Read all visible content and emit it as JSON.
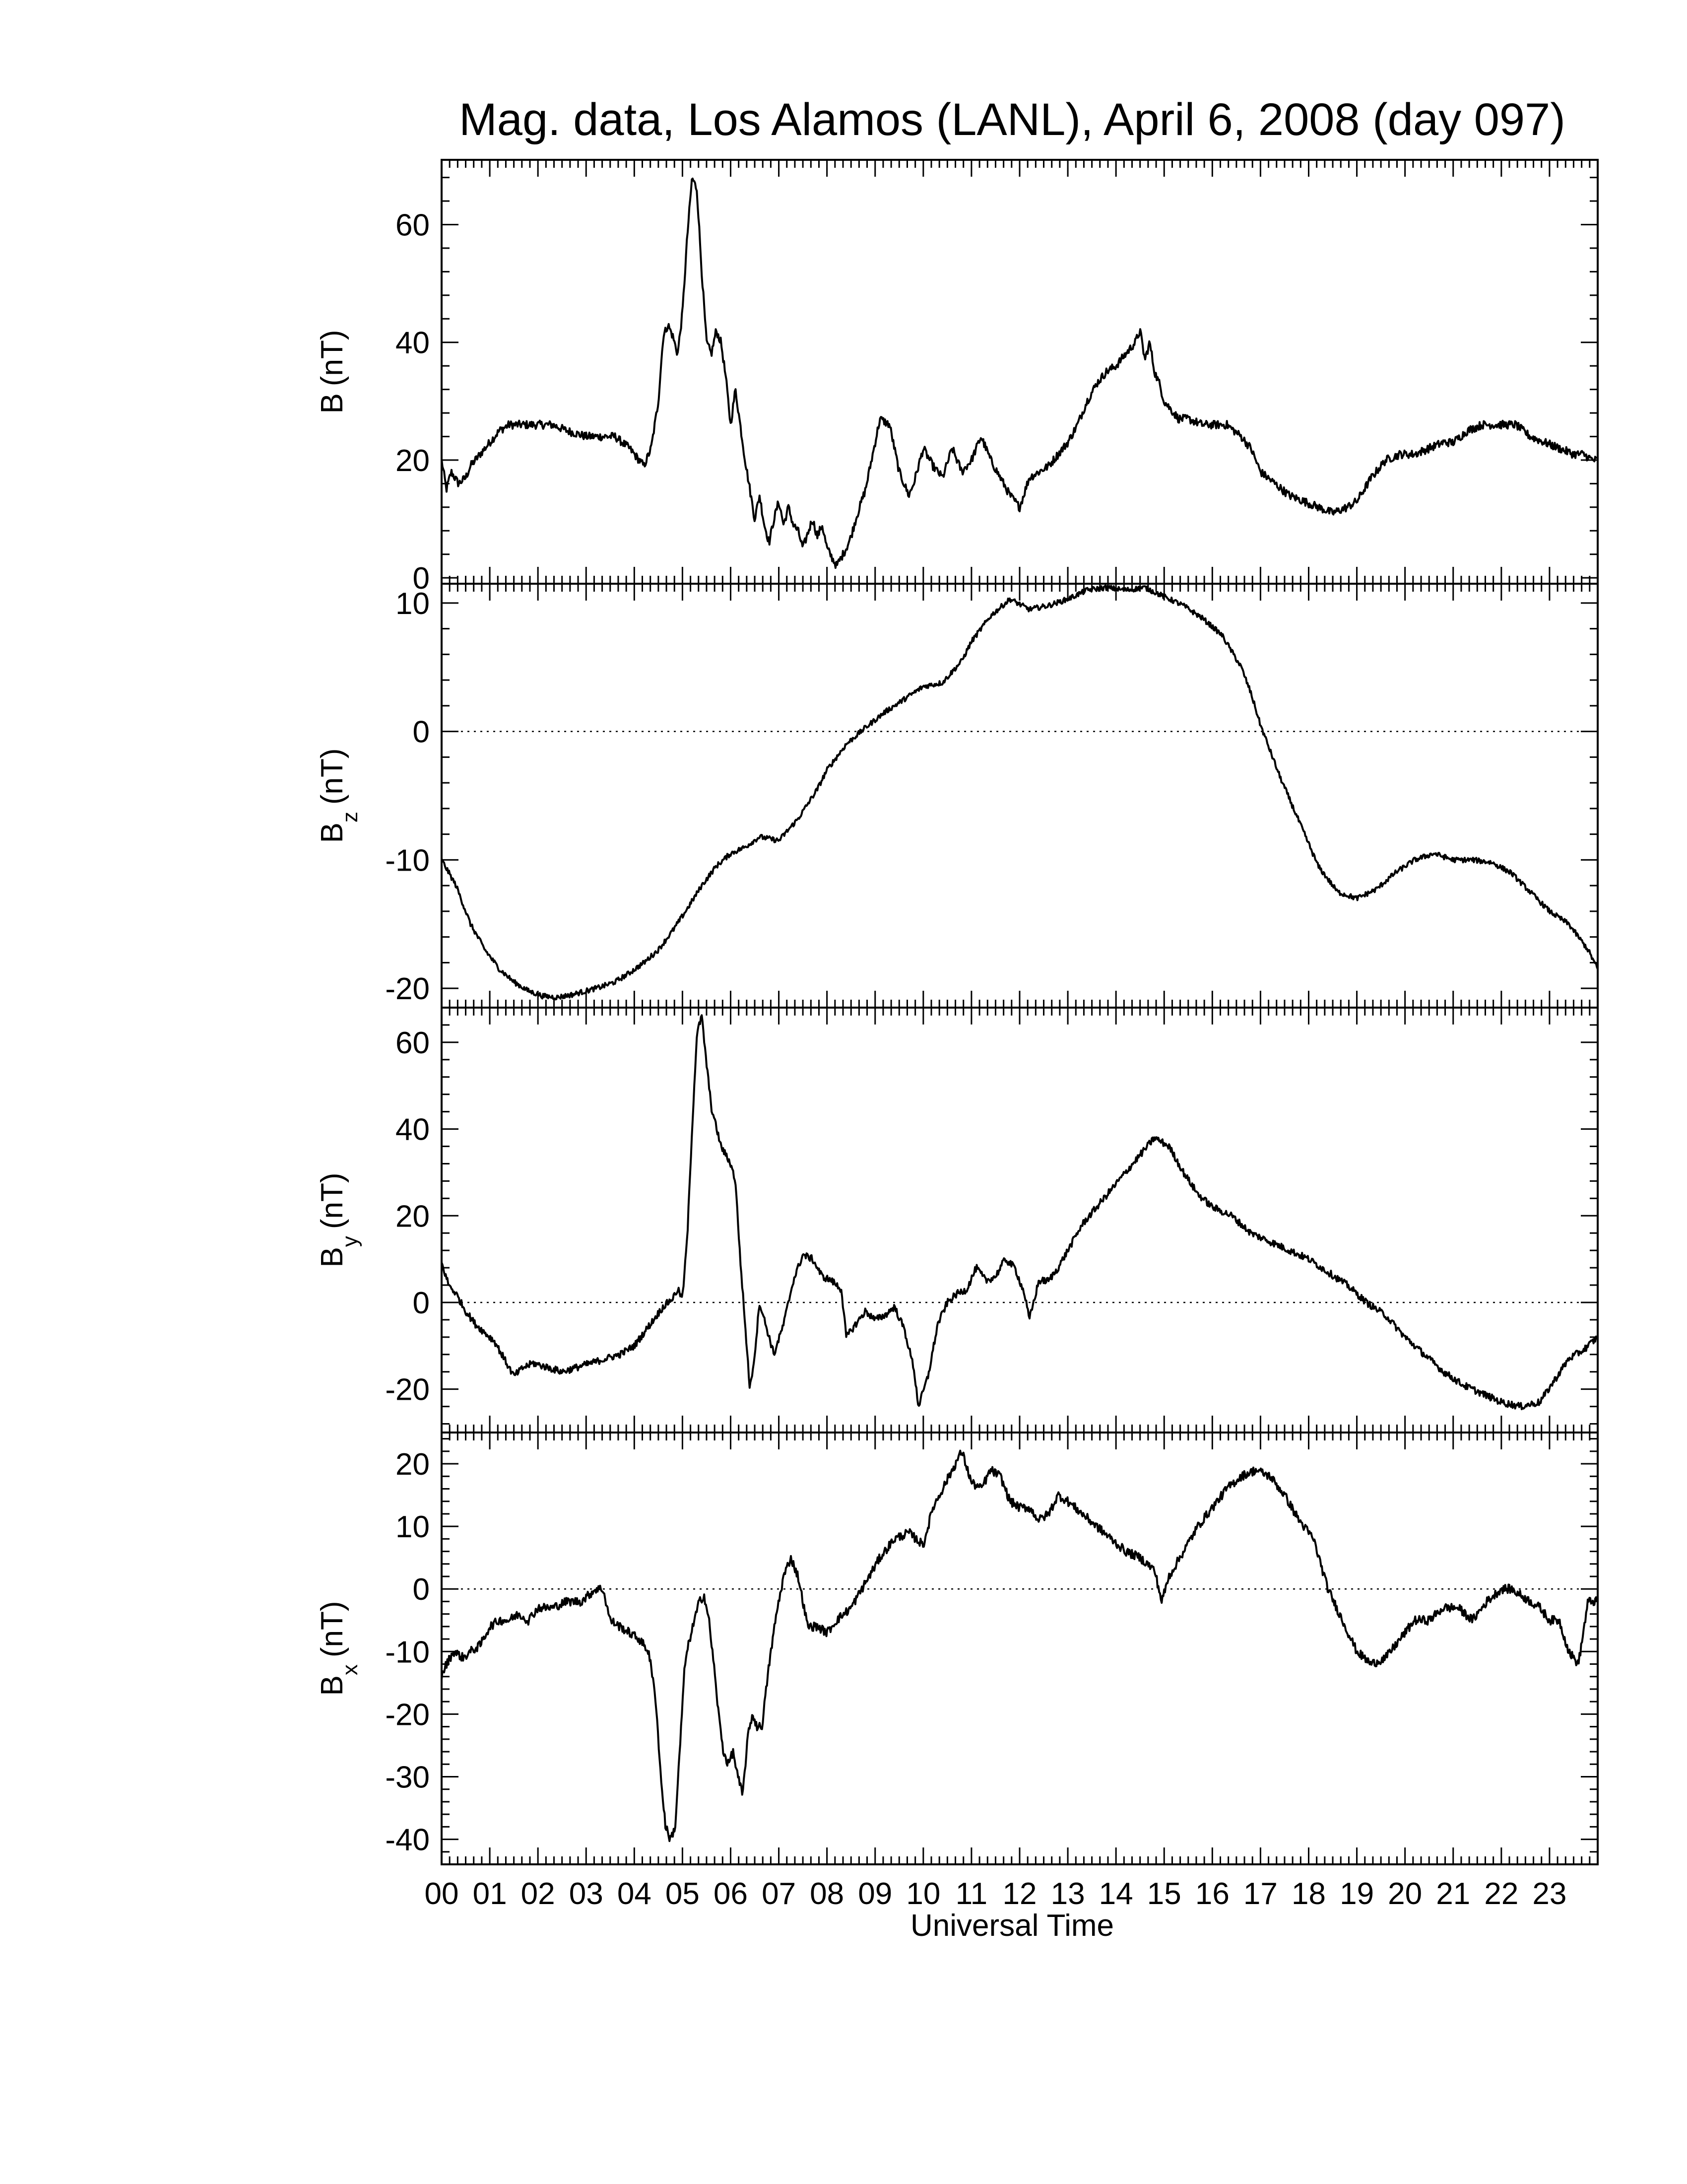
{
  "figure": {
    "title": "Mag. data, Los Alamos (LANL), April 6, 2008 (day 097)",
    "xlabel": "Universal Time"
  },
  "chart_data": {
    "type": "line",
    "x_unit": "hours UT",
    "x_ticks": [
      "00",
      "01",
      "02",
      "03",
      "04",
      "05",
      "06",
      "07",
      "08",
      "09",
      "10",
      "11",
      "12",
      "13",
      "14",
      "15",
      "16",
      "17",
      "18",
      "19",
      "20",
      "21",
      "22",
      "23"
    ],
    "xlim": [
      0,
      24
    ],
    "panels": [
      {
        "id": "B",
        "ylabel_main": "B",
        "ylabel_sub": "",
        "ylabel_unit": "(nT)",
        "ylim": [
          -1,
          71
        ],
        "yticks": [
          0,
          20,
          40,
          60
        ],
        "zero_line": false,
        "noise": 0.7,
        "series": {
          "name": "B",
          "x": [
            0,
            0.1,
            0.2,
            0.35,
            0.5,
            0.6,
            0.8,
            1.0,
            1.2,
            1.4,
            1.7,
            2.0,
            2.3,
            2.6,
            3.0,
            3.3,
            3.6,
            3.9,
            4.1,
            4.2,
            4.35,
            4.5,
            4.6,
            4.7,
            4.8,
            4.9,
            5.0,
            5.1,
            5.2,
            5.3,
            5.4,
            5.5,
            5.6,
            5.7,
            5.8,
            5.9,
            6.0,
            6.1,
            6.2,
            6.3,
            6.4,
            6.5,
            6.6,
            6.7,
            6.8,
            6.9,
            7.0,
            7.1,
            7.2,
            7.3,
            7.4,
            7.5,
            7.7,
            7.8,
            7.9,
            8.0,
            8.2,
            8.4,
            8.5,
            8.6,
            8.8,
            9.0,
            9.1,
            9.3,
            9.5,
            9.7,
            9.8,
            9.9,
            10.0,
            10.2,
            10.4,
            10.6,
            10.7,
            10.8,
            11.0,
            11.2,
            11.4,
            11.6,
            11.8,
            12.0,
            12.2,
            12.4,
            12.6,
            12.8,
            13.0,
            13.2,
            13.4,
            13.6,
            13.8,
            14.0,
            14.2,
            14.4,
            14.5,
            14.6,
            14.7,
            14.8,
            14.9,
            15.0,
            15.1,
            15.2,
            15.3,
            15.5,
            15.8,
            16.0,
            16.3,
            16.6,
            16.8,
            17.0,
            17.3,
            17.6,
            17.9,
            18.2,
            18.5,
            18.8,
            19.0,
            19.3,
            19.6,
            19.9,
            20.2,
            20.5,
            20.8,
            21.0,
            21.3,
            21.6,
            22.0,
            22.3,
            22.6,
            22.9,
            23.2,
            23.5,
            23.7,
            23.9,
            24.0
          ],
          "y": [
            20,
            15,
            18,
            16,
            17,
            19,
            21,
            23,
            25,
            26,
            26,
            26,
            26,
            25,
            24,
            24,
            24,
            22,
            20,
            19,
            22,
            30,
            41,
            43,
            41,
            38,
            45,
            58,
            68,
            66,
            52,
            40,
            38,
            42,
            40,
            34,
            26,
            32,
            26,
            20,
            15,
            10,
            14,
            9,
            6,
            10,
            13,
            9,
            12,
            9,
            8,
            5,
            10,
            7,
            9,
            5,
            2,
            5,
            7,
            10,
            15,
            23,
            27,
            26,
            18,
            14,
            16,
            19,
            22,
            19,
            17,
            22,
            20,
            18,
            20,
            24,
            20,
            17,
            14,
            12,
            17,
            18,
            19,
            21,
            23,
            26,
            30,
            33,
            35,
            36,
            38,
            40,
            42,
            37,
            40,
            35,
            33,
            30,
            29,
            28,
            27,
            27,
            26,
            26,
            26,
            24,
            22,
            18,
            16,
            14,
            13,
            12,
            11,
            12,
            13,
            17,
            20,
            21,
            21,
            22,
            23,
            23,
            25,
            26,
            26,
            26,
            24,
            23,
            22,
            21,
            21,
            20,
            20
          ]
        }
      },
      {
        "id": "Bz",
        "ylabel_main": "B",
        "ylabel_sub": "z",
        "ylabel_unit": "(nT)",
        "ylim": [
          -21.5,
          11.5
        ],
        "yticks": [
          -20,
          -10,
          0,
          10
        ],
        "zero_line": true,
        "noise": 0.2,
        "series": {
          "name": "Bz",
          "x": [
            0,
            0.3,
            0.6,
            0.9,
            1.2,
            1.5,
            1.8,
            2.1,
            2.4,
            2.7,
            3.0,
            3.3,
            3.6,
            3.9,
            4.2,
            4.5,
            4.8,
            5.1,
            5.4,
            5.7,
            6.0,
            6.3,
            6.6,
            7.0,
            7.4,
            7.8,
            8.0,
            8.4,
            8.8,
            9.2,
            9.6,
            10.0,
            10.4,
            10.8,
            11.0,
            11.4,
            11.8,
            12.2,
            12.6,
            13.0,
            13.4,
            13.8,
            14.2,
            14.6,
            15.0,
            15.4,
            15.8,
            16.2,
            16.6,
            16.8,
            17.0,
            17.4,
            17.8,
            18.2,
            18.6,
            19.0,
            19.4,
            19.8,
            20.2,
            20.6,
            21.0,
            21.4,
            21.8,
            22.2,
            22.6,
            23.0,
            23.4,
            23.8,
            24.0
          ],
          "y": [
            -10,
            -12,
            -15,
            -17,
            -18.5,
            -19.5,
            -20.2,
            -20.6,
            -20.7,
            -20.5,
            -20.2,
            -19.9,
            -19.5,
            -18.8,
            -18,
            -17,
            -15.5,
            -13.8,
            -12,
            -10.5,
            -9.5,
            -9.0,
            -8.2,
            -8.5,
            -6.8,
            -4.5,
            -3.0,
            -1.0,
            0.3,
            1.5,
            2.5,
            3.5,
            3.8,
            5.5,
            7.0,
            9.0,
            10.3,
            9.5,
            9.8,
            10.3,
            11.0,
            11.2,
            11.0,
            11.2,
            10.5,
            9.8,
            8.8,
            7.5,
            5.0,
            3.0,
            0.5,
            -3.5,
            -7.0,
            -10.5,
            -12.5,
            -13.0,
            -12.3,
            -11.0,
            -10.0,
            -9.5,
            -10.0,
            -10.0,
            -10.2,
            -11.0,
            -12.5,
            -14.0,
            -15.0,
            -17.0,
            -18.5
          ]
        }
      },
      {
        "id": "By",
        "ylabel_main": "B",
        "ylabel_sub": "y",
        "ylabel_unit": "(nT)",
        "ylim": [
          -30,
          68
        ],
        "yticks": [
          -20,
          0,
          20,
          40,
          60
        ],
        "zero_line": true,
        "noise": 0.8,
        "series": {
          "name": "By",
          "x": [
            0,
            0.15,
            0.3,
            0.5,
            0.7,
            0.9,
            1.1,
            1.3,
            1.5,
            1.7,
            1.9,
            2.2,
            2.5,
            2.8,
            3.1,
            3.4,
            3.7,
            4.0,
            4.2,
            4.4,
            4.6,
            4.8,
            4.9,
            5.0,
            5.1,
            5.2,
            5.3,
            5.4,
            5.5,
            5.6,
            5.8,
            6.0,
            6.1,
            6.2,
            6.3,
            6.4,
            6.5,
            6.6,
            6.7,
            6.9,
            7.1,
            7.3,
            7.5,
            7.7,
            7.9,
            8.1,
            8.3,
            8.4,
            8.6,
            8.8,
            9.0,
            9.2,
            9.4,
            9.6,
            9.8,
            9.9,
            10.1,
            10.3,
            10.5,
            10.7,
            10.9,
            11.1,
            11.3,
            11.5,
            11.7,
            11.9,
            12.1,
            12.2,
            12.4,
            12.6,
            12.8,
            13.0,
            13.3,
            13.6,
            13.9,
            14.2,
            14.5,
            14.8,
            15.1,
            15.4,
            15.7,
            16.0,
            16.4,
            16.8,
            17.2,
            17.6,
            18.0,
            18.4,
            18.8,
            19.2,
            19.6,
            20.0,
            20.4,
            20.8,
            21.2,
            21.6,
            22.0,
            22.4,
            22.8,
            23.1,
            23.4,
            23.7,
            24.0
          ],
          "y": [
            9,
            4,
            2,
            -2,
            -5,
            -7,
            -9,
            -13,
            -17,
            -15,
            -14,
            -15,
            -16,
            -15,
            -14,
            -13,
            -12,
            -10,
            -7,
            -4,
            -1,
            1,
            3,
            1,
            15,
            40,
            62,
            66,
            55,
            45,
            36,
            32,
            28,
            10,
            -5,
            -20,
            -12,
            0,
            -4,
            -12,
            -5,
            5,
            11,
            10,
            6,
            5,
            3,
            -8,
            -5,
            -2,
            -4,
            -3,
            -1,
            -6,
            -15,
            -24,
            -17,
            -5,
            0,
            2,
            3,
            8,
            5,
            6,
            10,
            8,
            2,
            -4,
            5,
            5,
            8,
            12,
            18,
            22,
            26,
            30,
            34,
            38,
            36,
            30,
            25,
            22,
            20,
            16,
            14,
            12,
            10,
            7,
            4,
            0,
            -3,
            -8,
            -12,
            -16,
            -19,
            -21,
            -23,
            -24,
            -23,
            -18,
            -13,
            -11,
            -8
          ]
        }
      },
      {
        "id": "Bx",
        "ylabel_main": "B",
        "ylabel_sub": "x",
        "ylabel_unit": "(nT)",
        "ylim": [
          -44,
          25
        ],
        "yticks": [
          -40,
          -30,
          -20,
          -10,
          0,
          10,
          20
        ],
        "zero_line": true,
        "noise": 0.7,
        "series": {
          "name": "Bx",
          "x": [
            0,
            0.1,
            0.25,
            0.45,
            0.6,
            0.8,
            1.0,
            1.2,
            1.4,
            1.6,
            1.8,
            2.0,
            2.3,
            2.6,
            2.9,
            3.2,
            3.35,
            3.5,
            3.7,
            3.9,
            4.1,
            4.3,
            4.45,
            4.55,
            4.65,
            4.75,
            4.85,
            4.95,
            5.05,
            5.15,
            5.25,
            5.35,
            5.45,
            5.55,
            5.65,
            5.75,
            5.85,
            5.95,
            6.05,
            6.15,
            6.25,
            6.35,
            6.45,
            6.55,
            6.65,
            6.8,
            6.95,
            7.1,
            7.25,
            7.4,
            7.5,
            7.6,
            7.8,
            8.0,
            8.2,
            8.5,
            8.8,
            9.1,
            9.4,
            9.7,
            10.0,
            10.2,
            10.4,
            10.6,
            10.8,
            11.0,
            11.2,
            11.4,
            11.6,
            11.8,
            12.0,
            12.2,
            12.4,
            12.6,
            12.8,
            13.0,
            13.3,
            13.6,
            13.9,
            14.2,
            14.5,
            14.8,
            14.95,
            15.1,
            15.4,
            15.7,
            16.0,
            16.3,
            16.6,
            16.9,
            17.2,
            17.5,
            17.8,
            18.1,
            18.4,
            18.7,
            19.0,
            19.3,
            19.6,
            19.9,
            20.2,
            20.5,
            20.8,
            21.1,
            21.4,
            21.7,
            22.0,
            22.2,
            22.4,
            22.6,
            22.8,
            23.0,
            23.2,
            23.4,
            23.6,
            23.8,
            24.0
          ],
          "y": [
            -14,
            -12,
            -10,
            -11,
            -10,
            -9,
            -6,
            -5,
            -5,
            -4,
            -5,
            -3,
            -3,
            -2,
            -2,
            0,
            0,
            -5,
            -6,
            -7,
            -8,
            -10,
            -18,
            -30,
            -38,
            -40,
            -38,
            -25,
            -12,
            -8,
            -5,
            -2,
            -1,
            -5,
            -12,
            -20,
            -26,
            -28,
            -26,
            -30,
            -33,
            -24,
            -20,
            -22,
            -22,
            -12,
            -4,
            2,
            5,
            2,
            -2,
            -6,
            -6,
            -7,
            -5,
            -3,
            1,
            5,
            8,
            9,
            7,
            13,
            16,
            19,
            22,
            17,
            16,
            19,
            18,
            14,
            13,
            13,
            11,
            12,
            15,
            14,
            12,
            10,
            8,
            6,
            5,
            3,
            -2,
            2,
            6,
            10,
            13,
            16,
            18,
            19,
            18,
            15,
            11,
            8,
            0,
            -5,
            -10,
            -12,
            -11,
            -8,
            -5,
            -5,
            -3,
            -3,
            -5,
            -2,
            0,
            0,
            -1,
            -2,
            -3,
            -5,
            -5,
            -10,
            -12,
            -2,
            -2
          ]
        }
      }
    ]
  }
}
